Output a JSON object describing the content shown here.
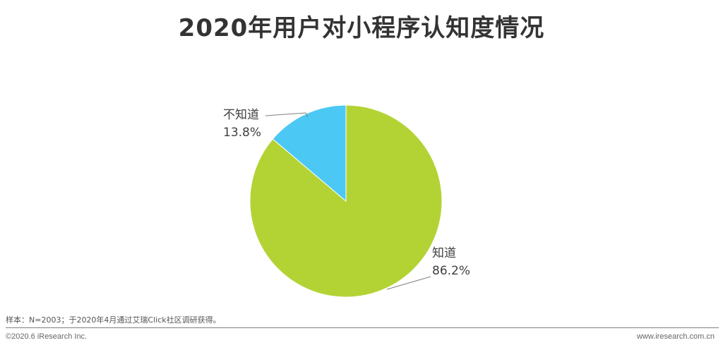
{
  "chart_data": {
    "type": "pie",
    "title": "2020年用户对小程序认知度情况",
    "slices": [
      {
        "label": "知道",
        "value": 86.2,
        "value_label": "86.2%",
        "color": "#B3D335"
      },
      {
        "label": "不知道",
        "value": 13.8,
        "value_label": "13.8%",
        "color": "#4CC8F4"
      }
    ],
    "legend": "none"
  },
  "footer": {
    "note": "样本：N=2003；于2020年4月通过艾瑞Click社区调研获得。",
    "copyright": "©2020.6 iResearch Inc.",
    "website": "www.iresearch.com.cn"
  }
}
